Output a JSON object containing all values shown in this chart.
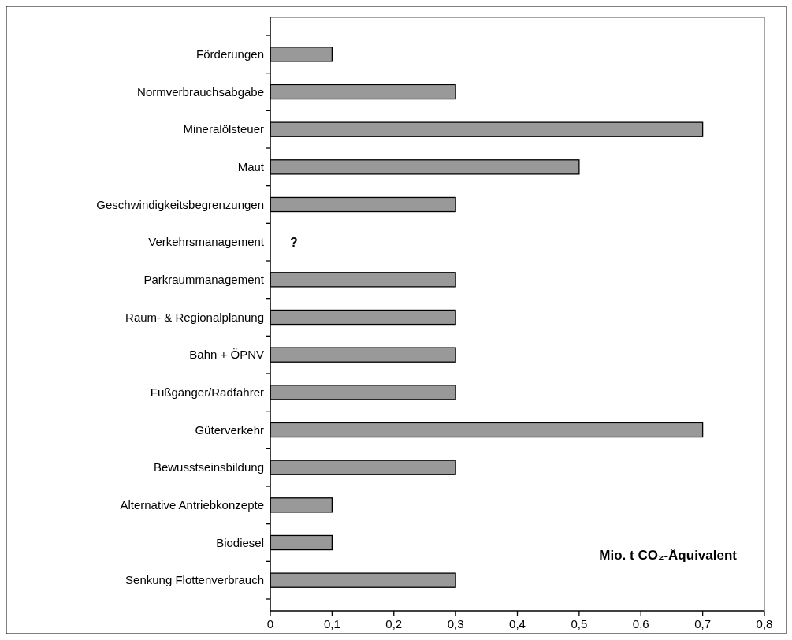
{
  "chart_data": {
    "type": "bar",
    "orientation": "horizontal",
    "xlabel": "Mio. t CO₂-Äquivalent",
    "categories": [
      "Förderungen",
      "Normverbrauchsabgabe",
      "Mineralölsteuer",
      "Maut",
      "Geschwindigkeitsbegrenzungen",
      "Verkehrsmanagement",
      "Parkraummanagement",
      "Raum- & Regionalplanung",
      "Bahn + ÖPNV",
      "Fußgänger/Radfahrer",
      "Güterverkehr",
      "Bewusstseinsbildung",
      "Alternative Antriebkonzepte",
      "Biodiesel",
      "Senkung Flottenverbrauch"
    ],
    "values": [
      0.1,
      0.3,
      0.7,
      0.5,
      0.3,
      null,
      0.3,
      0.3,
      0.3,
      0.3,
      0.7,
      0.3,
      0.1,
      0.1,
      0.3
    ],
    "color": "#999999",
    "xlim": [
      0,
      0.8
    ],
    "xticks": [
      0,
      {
        "value": 0.1,
        "label": "0,1"
      },
      {
        "value": 0.2,
        "label": "0,2"
      },
      {
        "value": 0.3,
        "label": "0,3"
      },
      {
        "value": 0.4,
        "label": "0,4"
      },
      {
        "value": 0.5,
        "label": "0,5"
      },
      {
        "value": 0.6,
        "label": "0,6"
      },
      {
        "value": 0.7,
        "label": "0,7"
      },
      {
        "value": 0.8,
        "label": "0,8"
      }
    ],
    "annotations": [
      "?"
    ]
  }
}
